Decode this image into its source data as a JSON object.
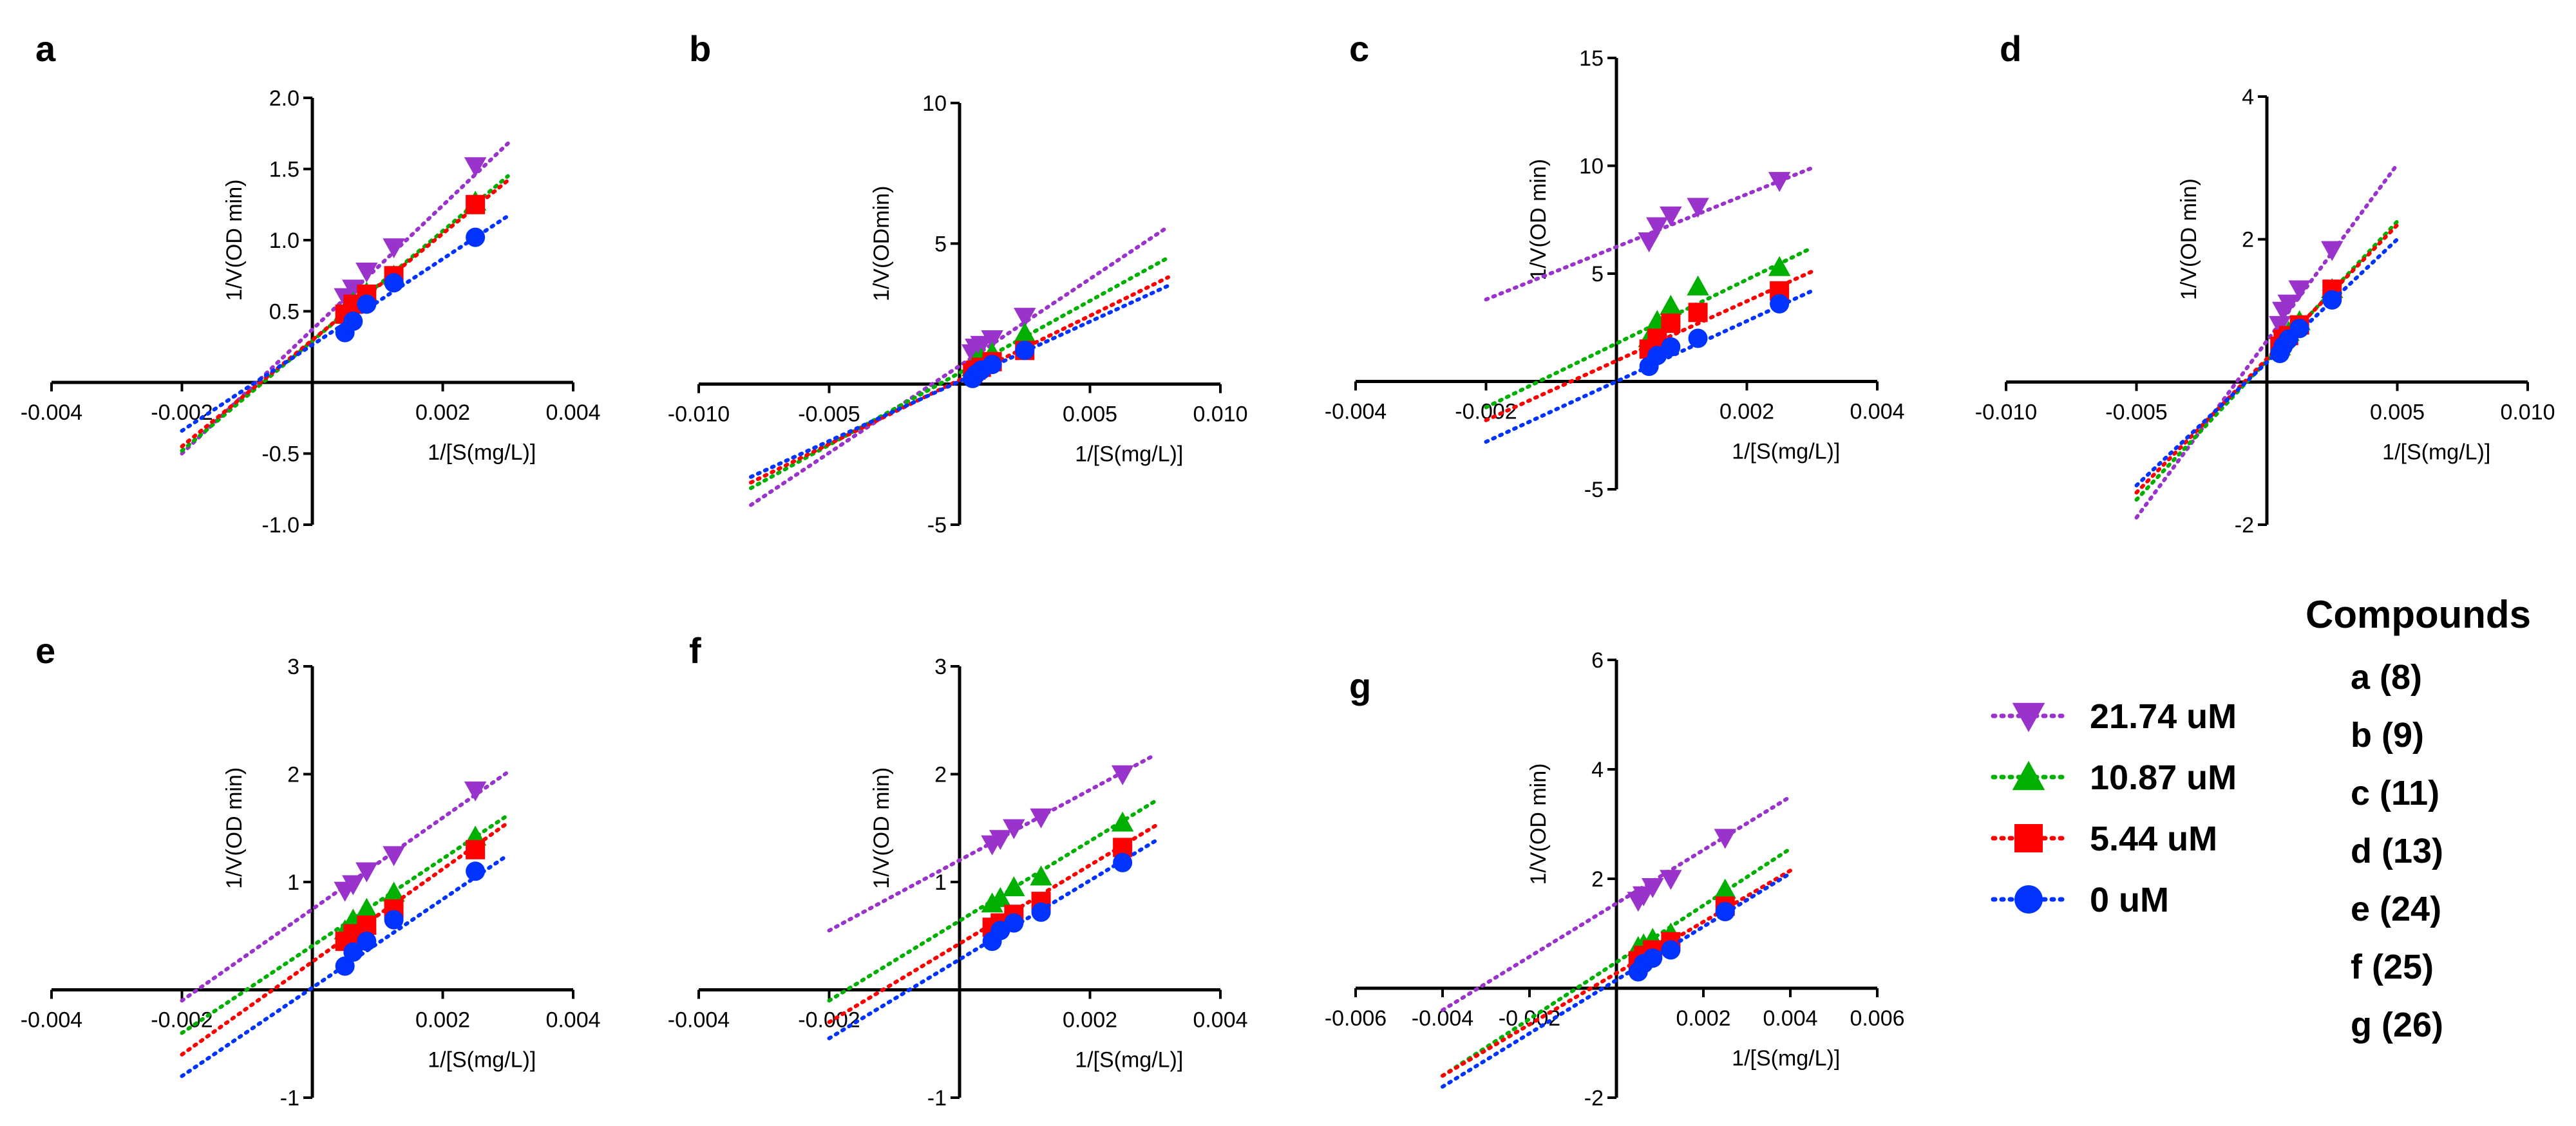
{
  "figure": {
    "legend": [
      {
        "label": "21.74 uM",
        "color": "#9933CC",
        "marker": "triangle-down"
      },
      {
        "label": "10.87 uM",
        "color": "#00B000",
        "marker": "triangle-up"
      },
      {
        "label": "5.44 uM",
        "color": "#FF0000",
        "marker": "square"
      },
      {
        "label": "0 uM",
        "color": "#0033FF",
        "marker": "circle"
      }
    ],
    "compounds_title": "Compounds",
    "compounds": [
      "a (8)",
      "b (9)",
      "c (11)",
      "d (13)",
      "e (24)",
      "f (25)",
      "g (26)"
    ]
  },
  "chart_data": [
    {
      "panel": "a",
      "type": "scatter",
      "xlabel": "1/[S(mg/L)]",
      "ylabel": "1/V(OD min)",
      "xlim": [
        -0.004,
        0.004
      ],
      "ylim": [
        -1.0,
        2.0
      ],
      "xticks": [
        -0.004,
        -0.002,
        0.002,
        0.004
      ],
      "xtick_labels": [
        "-0.004",
        "-0.002",
        "0.002",
        "0.004"
      ],
      "yticks": [
        -1.0,
        -0.5,
        0.5,
        1.0,
        1.5,
        2.0
      ],
      "ytick_labels": [
        "-1.0",
        "-0.5",
        "0.5",
        "1.0",
        "1.5",
        "2.0"
      ],
      "x": [
        0.0005,
        0.000625,
        0.000833,
        0.00125,
        0.0025
      ],
      "series": [
        {
          "name": "21.74 uM",
          "values": [
            0.6,
            0.66,
            0.78,
            0.95,
            1.52
          ],
          "fit_x": [
            -0.002,
            0.003
          ],
          "fit_y": [
            -0.5,
            1.68
          ]
        },
        {
          "name": "10.87 uM",
          "values": [
            0.5,
            0.56,
            0.63,
            0.75,
            1.27
          ],
          "fit_x": [
            -0.002,
            0.003
          ],
          "fit_y": [
            -0.48,
            1.45
          ]
        },
        {
          "name": "5.44 uM",
          "values": [
            0.48,
            0.55,
            0.62,
            0.75,
            1.25
          ],
          "fit_x": [
            -0.002,
            0.003
          ],
          "fit_y": [
            -0.45,
            1.42
          ]
        },
        {
          "name": "0 uM",
          "values": [
            0.35,
            0.43,
            0.55,
            0.7,
            1.02
          ],
          "fit_x": [
            -0.002,
            0.003
          ],
          "fit_y": [
            -0.34,
            1.17
          ]
        }
      ]
    },
    {
      "panel": "b",
      "type": "scatter",
      "xlabel": "1/[S(mg/L)]",
      "ylabel": "1/V(ODmin)",
      "xlim": [
        -0.01,
        0.01
      ],
      "ylim": [
        -5,
        10
      ],
      "xticks": [
        -0.01,
        -0.005,
        0.005,
        0.01
      ],
      "xtick_labels": [
        "-0.010",
        "-0.005",
        "0.005",
        "0.010"
      ],
      "yticks": [
        -5,
        5,
        10
      ],
      "ytick_labels": [
        "-5",
        "5",
        "10"
      ],
      "x": [
        0.0005,
        0.000625,
        0.000833,
        0.00125,
        0.0025
      ],
      "series": [
        {
          "name": "21.74 uM",
          "values": [
            1.1,
            1.3,
            1.4,
            1.6,
            2.4
          ],
          "fit_x": [
            -0.008,
            0.008
          ],
          "fit_y": [
            -4.3,
            5.6
          ]
        },
        {
          "name": "10.87 uM",
          "values": [
            0.6,
            0.8,
            0.9,
            1.1,
            1.8
          ],
          "fit_x": [
            -0.008,
            0.008
          ],
          "fit_y": [
            -3.7,
            4.5
          ]
        },
        {
          "name": "5.44 uM",
          "values": [
            0.4,
            0.5,
            0.6,
            0.8,
            1.2
          ],
          "fit_x": [
            -0.008,
            0.008
          ],
          "fit_y": [
            -3.5,
            3.8
          ]
        },
        {
          "name": "0 uM",
          "values": [
            0.2,
            0.35,
            0.5,
            0.7,
            1.2
          ],
          "fit_x": [
            -0.008,
            0.008
          ],
          "fit_y": [
            -3.3,
            3.5
          ]
        }
      ]
    },
    {
      "panel": "c",
      "type": "scatter",
      "xlabel": "1/[S(mg/L)]",
      "ylabel": "1/V(OD min)",
      "xlim": [
        -0.004,
        0.004
      ],
      "ylim": [
        -5,
        15
      ],
      "xticks": [
        -0.004,
        -0.002,
        0.002,
        0.004
      ],
      "xtick_labels": [
        "-0.004",
        "-0.002",
        "0.002",
        "0.004"
      ],
      "yticks": [
        -5,
        5,
        10,
        15
      ],
      "ytick_labels": [
        "-5",
        "5",
        "10",
        "15"
      ],
      "x": [
        0.0005,
        0.000625,
        0.000833,
        0.00125,
        0.0025
      ],
      "series": [
        {
          "name": "21.74 uM",
          "values": [
            6.5,
            7.2,
            7.7,
            8.1,
            9.3
          ],
          "fit_x": [
            -0.002,
            0.003
          ],
          "fit_y": [
            3.8,
            9.9
          ]
        },
        {
          "name": "10.87 uM",
          "values": [
            2.0,
            2.8,
            3.5,
            4.4,
            5.3
          ],
          "fit_x": [
            -0.002,
            0.003
          ],
          "fit_y": [
            -1.2,
            6.2
          ]
        },
        {
          "name": "5.44 uM",
          "values": [
            1.5,
            2.0,
            2.7,
            3.2,
            4.2
          ],
          "fit_x": [
            -0.002,
            0.003
          ],
          "fit_y": [
            -1.8,
            5.1
          ]
        },
        {
          "name": "0 uM",
          "values": [
            0.7,
            1.2,
            1.6,
            2.0,
            3.6
          ],
          "fit_x": [
            -0.002,
            0.003
          ],
          "fit_y": [
            -2.8,
            4.2
          ]
        }
      ]
    },
    {
      "panel": "d",
      "type": "scatter",
      "xlabel": "1/[S(mg/L)]",
      "ylabel": "1/V(OD min)",
      "xlim": [
        -0.01,
        0.01
      ],
      "ylim": [
        -2,
        4
      ],
      "xticks": [
        -0.01,
        -0.005,
        0.005,
        0.01
      ],
      "xtick_labels": [
        "-0.010",
        "-0.005",
        "0.005",
        "0.010"
      ],
      "yticks": [
        -2,
        2,
        4
      ],
      "ytick_labels": [
        "-2",
        "2",
        "4"
      ],
      "x": [
        0.0005,
        0.000625,
        0.000833,
        0.00125,
        0.0025
      ],
      "series": [
        {
          "name": "21.74 uM",
          "values": [
            0.8,
            1.0,
            1.1,
            1.3,
            1.85
          ],
          "fit_x": [
            -0.005,
            0.005
          ],
          "fit_y": [
            -1.9,
            3.05
          ]
        },
        {
          "name": "10.87 uM",
          "values": [
            0.5,
            0.6,
            0.7,
            0.85,
            1.3
          ],
          "fit_x": [
            -0.005,
            0.005
          ],
          "fit_y": [
            -1.65,
            2.25
          ]
        },
        {
          "name": "5.44 uM",
          "values": [
            0.5,
            0.6,
            0.65,
            0.8,
            1.3
          ],
          "fit_x": [
            -0.005,
            0.005
          ],
          "fit_y": [
            -1.55,
            2.2
          ]
        },
        {
          "name": "0 uM",
          "values": [
            0.4,
            0.5,
            0.6,
            0.75,
            1.15
          ],
          "fit_x": [
            -0.005,
            0.005
          ],
          "fit_y": [
            -1.45,
            2.0
          ]
        }
      ]
    },
    {
      "panel": "e",
      "type": "scatter",
      "xlabel": "1/[S(mg/L)]",
      "ylabel": "1/V(OD min)",
      "xlim": [
        -0.004,
        0.004
      ],
      "ylim": [
        -1,
        3
      ],
      "xticks": [
        -0.004,
        -0.002,
        0.002,
        0.004
      ],
      "xtick_labels": [
        "-0.004",
        "-0.002",
        "0.002",
        "0.004"
      ],
      "yticks": [
        -1,
        1,
        2,
        3
      ],
      "ytick_labels": [
        "-1",
        "1",
        "2",
        "3"
      ],
      "x": [
        0.0005,
        0.000625,
        0.000833,
        0.00125,
        0.0025
      ],
      "series": [
        {
          "name": "21.74 uM",
          "values": [
            0.92,
            0.98,
            1.1,
            1.25,
            1.85
          ],
          "fit_x": [
            -0.002,
            0.003
          ],
          "fit_y": [
            -0.1,
            2.02
          ]
        },
        {
          "name": "10.87 uM",
          "values": [
            0.55,
            0.65,
            0.75,
            0.9,
            1.42
          ],
          "fit_x": [
            -0.002,
            0.003
          ],
          "fit_y": [
            -0.4,
            1.62
          ]
        },
        {
          "name": "5.44 uM",
          "values": [
            0.45,
            0.52,
            0.6,
            0.75,
            1.3
          ],
          "fit_x": [
            -0.002,
            0.003
          ],
          "fit_y": [
            -0.6,
            1.55
          ]
        },
        {
          "name": "0 uM",
          "values": [
            0.22,
            0.35,
            0.45,
            0.65,
            1.1
          ],
          "fit_x": [
            -0.002,
            0.003
          ],
          "fit_y": [
            -0.8,
            1.25
          ]
        }
      ]
    },
    {
      "panel": "f",
      "type": "scatter",
      "xlabel": "1/[S(mg/L)]",
      "ylabel": "1/V(OD min)",
      "xlim": [
        -0.004,
        0.004
      ],
      "ylim": [
        -1,
        3
      ],
      "xticks": [
        -0.004,
        -0.002,
        0.002,
        0.004
      ],
      "xtick_labels": [
        "-0.004",
        "-0.002",
        "0.002",
        "0.004"
      ],
      "yticks": [
        -1,
        1,
        2,
        3
      ],
      "ytick_labels": [
        "-1",
        "1",
        "2",
        "3"
      ],
      "x": [
        0.0005,
        0.000625,
        0.000833,
        0.00125,
        0.0025
      ],
      "series": [
        {
          "name": "21.74 uM",
          "values": [
            1.35,
            1.4,
            1.5,
            1.6,
            2.0
          ],
          "fit_x": [
            -0.002,
            0.003
          ],
          "fit_y": [
            0.55,
            2.18
          ]
        },
        {
          "name": "10.87 uM",
          "values": [
            0.8,
            0.85,
            0.95,
            1.05,
            1.55
          ],
          "fit_x": [
            -0.002,
            0.003
          ],
          "fit_y": [
            -0.1,
            1.75
          ]
        },
        {
          "name": "5.44 uM",
          "values": [
            0.58,
            0.62,
            0.7,
            0.82,
            1.32
          ],
          "fit_x": [
            -0.002,
            0.003
          ],
          "fit_y": [
            -0.3,
            1.52
          ]
        },
        {
          "name": "0 uM",
          "values": [
            0.45,
            0.55,
            0.62,
            0.72,
            1.18
          ],
          "fit_x": [
            -0.002,
            0.003
          ],
          "fit_y": [
            -0.45,
            1.38
          ]
        }
      ]
    },
    {
      "panel": "g",
      "type": "scatter",
      "xlabel": "1/[S(mg/L)]",
      "ylabel": "1/V(OD min)",
      "xlim": [
        -0.006,
        0.006
      ],
      "ylim": [
        -2,
        6
      ],
      "xticks": [
        -0.006,
        -0.004,
        -0.002,
        0.002,
        0.004,
        0.006
      ],
      "xtick_labels": [
        "-0.006",
        "-0.004",
        "-0.002",
        "0.002",
        "0.004",
        "0.006"
      ],
      "yticks": [
        -2,
        2,
        4,
        6
      ],
      "ytick_labels": [
        "-2",
        "2",
        "4",
        "6"
      ],
      "x": [
        0.0005,
        0.000625,
        0.000833,
        0.00125,
        0.0025
      ],
      "series": [
        {
          "name": "21.74 uM",
          "values": [
            1.6,
            1.7,
            1.85,
            2.0,
            2.75
          ],
          "fit_x": [
            -0.004,
            0.004
          ],
          "fit_y": [
            -0.4,
            3.5
          ]
        },
        {
          "name": "10.87 uM",
          "values": [
            0.75,
            0.8,
            0.9,
            1.0,
            1.8
          ],
          "fit_x": [
            -0.004,
            0.004
          ],
          "fit_y": [
            -1.6,
            2.55
          ]
        },
        {
          "name": "5.44 uM",
          "values": [
            0.5,
            0.6,
            0.7,
            0.85,
            1.5
          ],
          "fit_x": [
            -0.004,
            0.004
          ],
          "fit_y": [
            -1.6,
            2.15
          ]
        },
        {
          "name": "0 uM",
          "values": [
            0.3,
            0.45,
            0.55,
            0.7,
            1.4
          ],
          "fit_x": [
            -0.004,
            0.004
          ],
          "fit_y": [
            -1.8,
            2.1
          ]
        }
      ]
    }
  ]
}
